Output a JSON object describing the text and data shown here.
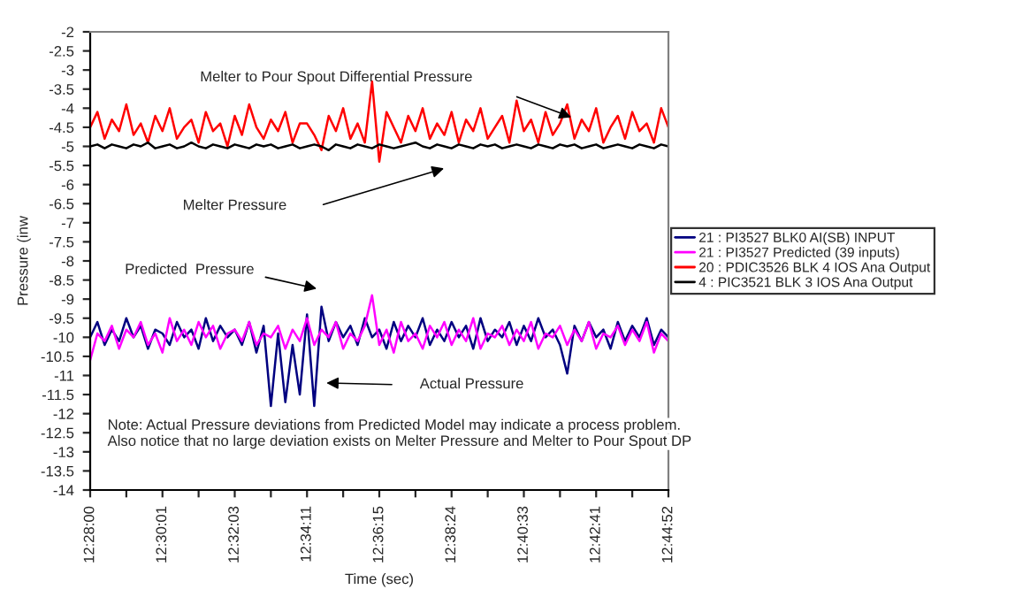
{
  "chart_data": {
    "type": "line",
    "xlabel": "Time (sec)",
    "ylabel": "Pressure (inw",
    "categories": [
      "12:28:00",
      null,
      null,
      null,
      null,
      null,
      null,
      null,
      null,
      null,
      "12:30:01",
      null,
      null,
      null,
      null,
      null,
      null,
      null,
      null,
      null,
      "12:32:03",
      null,
      null,
      null,
      null,
      null,
      null,
      null,
      null,
      null,
      "12:34:11",
      null,
      null,
      null,
      null,
      null,
      null,
      null,
      null,
      null,
      "12:36:15",
      null,
      null,
      null,
      null,
      null,
      null,
      null,
      null,
      null,
      "12:38:24",
      null,
      null,
      null,
      null,
      null,
      null,
      null,
      null,
      null,
      "12:40:33",
      null,
      null,
      null,
      null,
      null,
      null,
      null,
      null,
      null,
      "12:42:41",
      null,
      null,
      null,
      null,
      null,
      null,
      null,
      null,
      null,
      "12:44:52"
    ],
    "series": [
      {
        "name": "21 : PI3527 BLK0 AI(SB) INPUT",
        "color": "#000080",
        "values": [
          -10.0,
          -9.6,
          -10.2,
          -9.8,
          -10.1,
          -9.5,
          -10.0,
          -9.7,
          -10.3,
          -9.8,
          -9.9,
          -10.2,
          -9.6,
          -10.0,
          -9.8,
          -10.3,
          -9.5,
          -10.1,
          -9.7,
          -10.0,
          -9.8,
          -10.2,
          -9.6,
          -10.4,
          -9.7,
          -11.8,
          -9.9,
          -11.7,
          -10.2,
          -11.5,
          -9.4,
          -11.8,
          -9.2,
          -10.1,
          -9.6,
          -10.0,
          -9.7,
          -10.2,
          -9.5,
          -10.0,
          -9.8,
          -10.3,
          -9.6,
          -10.1,
          -9.7,
          -10.0,
          -9.5,
          -10.2,
          -9.8,
          -10.1,
          -9.6,
          -10.0,
          -9.7,
          -10.3,
          -9.5,
          -10.1,
          -9.8,
          -10.0,
          -9.6,
          -10.2,
          -9.7,
          -10.1,
          -9.5,
          -10.0,
          -9.8,
          -10.2,
          -10.95,
          -9.7,
          -10.1,
          -9.6,
          -10.0,
          -9.8,
          -10.3,
          -9.6,
          -10.1,
          -9.7,
          -10.0,
          -9.5,
          -10.2,
          -9.8,
          -10.0
        ]
      },
      {
        "name": "21 : PI3527 Predicted (39 inputs)",
        "color": "#ff00ff",
        "values": [
          -10.6,
          -9.9,
          -10.1,
          -9.7,
          -10.3,
          -9.8,
          -10.0,
          -9.6,
          -10.2,
          -9.9,
          -10.4,
          -9.5,
          -10.1,
          -9.8,
          -10.2,
          -9.6,
          -10.0,
          -9.7,
          -10.3,
          -9.9,
          -9.8,
          -10.1,
          -9.6,
          -10.2,
          -9.9,
          -10.0,
          -9.7,
          -10.3,
          -9.8,
          -10.1,
          -9.5,
          -10.2,
          -9.8,
          -10.0,
          -9.6,
          -10.3,
          -9.9,
          -10.1,
          -9.7,
          -8.9,
          -10.2,
          -9.8,
          -10.4,
          -9.6,
          -10.1,
          -9.9,
          -10.3,
          -9.7,
          -10.0,
          -9.6,
          -10.2,
          -9.8,
          -10.1,
          -9.5,
          -10.3,
          -9.9,
          -10.0,
          -9.7,
          -10.2,
          -9.8,
          -10.1,
          -9.6,
          -10.3,
          -9.9,
          -10.0,
          -9.7,
          -10.2,
          -9.8,
          -10.1,
          -9.6,
          -10.3,
          -9.9,
          -10.0,
          -9.7,
          -10.2,
          -9.8,
          -10.1,
          -9.6,
          -10.4,
          -9.9,
          -10.1
        ]
      },
      {
        "name": "20 : PDIC3526 BLK 4 IOS Ana Output",
        "color": "#ff0000",
        "values": [
          -4.5,
          -4.1,
          -4.8,
          -4.3,
          -4.6,
          -3.9,
          -4.7,
          -4.4,
          -4.9,
          -4.2,
          -4.6,
          -4.0,
          -4.8,
          -4.5,
          -4.3,
          -4.9,
          -4.1,
          -4.6,
          -4.4,
          -5.0,
          -4.2,
          -4.7,
          -3.9,
          -4.5,
          -4.8,
          -4.3,
          -4.6,
          -4.1,
          -4.9,
          -4.4,
          -4.4,
          -4.7,
          -5.1,
          -4.2,
          -4.6,
          -4.0,
          -4.8,
          -4.4,
          -4.9,
          -3.3,
          -5.4,
          -4.1,
          -4.5,
          -4.9,
          -4.2,
          -4.6,
          -4.0,
          -4.8,
          -4.4,
          -4.7,
          -4.1,
          -4.9,
          -4.3,
          -4.6,
          -4.0,
          -4.8,
          -4.5,
          -4.2,
          -4.9,
          -3.8,
          -4.6,
          -4.3,
          -4.9,
          -4.1,
          -4.7,
          -4.4,
          -3.9,
          -4.8,
          -4.3,
          -4.6,
          -4.0,
          -4.9,
          -4.5,
          -4.2,
          -4.8,
          -4.1,
          -4.6,
          -4.4,
          -4.9,
          -4.0,
          -4.5
        ]
      },
      {
        "name": "4 : PIC3521 BLK 3 IOS Ana Output",
        "color": "#000000",
        "values": [
          -5.0,
          -4.95,
          -5.05,
          -4.95,
          -5.0,
          -5.05,
          -4.95,
          -5.0,
          -4.9,
          -5.05,
          -5.0,
          -4.95,
          -5.05,
          -5.0,
          -4.9,
          -5.0,
          -5.05,
          -4.95,
          -5.0,
          -5.05,
          -4.95,
          -5.0,
          -5.05,
          -4.95,
          -5.0,
          -4.95,
          -5.05,
          -5.0,
          -4.95,
          -5.05,
          -5.0,
          -4.95,
          -5.0,
          -5.1,
          -4.95,
          -5.0,
          -5.05,
          -4.95,
          -5.0,
          -5.05,
          -4.95,
          -5.0,
          -5.05,
          -5.0,
          -4.95,
          -4.9,
          -5.0,
          -5.05,
          -4.95,
          -5.0,
          -5.05,
          -4.95,
          -5.0,
          -5.05,
          -4.95,
          -5.0,
          -4.95,
          -5.05,
          -5.0,
          -4.95,
          -5.0,
          -5.05,
          -4.95,
          -5.0,
          -5.05,
          -4.95,
          -5.0,
          -4.95,
          -5.05,
          -5.0,
          -4.95,
          -5.05,
          -5.0,
          -4.95,
          -5.0,
          -5.05,
          -4.95,
          -5.0,
          -5.05,
          -4.95,
          -5.0
        ]
      }
    ],
    "ylim": [
      -14,
      -2
    ],
    "yticks": [
      -14,
      -13.5,
      -13,
      -12.5,
      -12,
      -11.5,
      -11,
      -10.5,
      -10,
      -9.5,
      -9,
      -8.5,
      -8,
      -7.5,
      -7,
      -6.5,
      -6,
      -5.5,
      -5,
      -4.5,
      -4,
      -3.5,
      -3,
      -2.5,
      -2
    ],
    "annotations": [
      "Melter to Pour Spout Differential Pressure",
      "Melter Pressure",
      "Predicted  Pressure",
      "Actual Pressure",
      "Note: Actual Pressure deviations from Predicted Model may indicate a process problem.",
      "Also notice that no large deviation exists on Melter Pressure and Melter to Pour Spout DP"
    ],
    "legend": "right"
  }
}
